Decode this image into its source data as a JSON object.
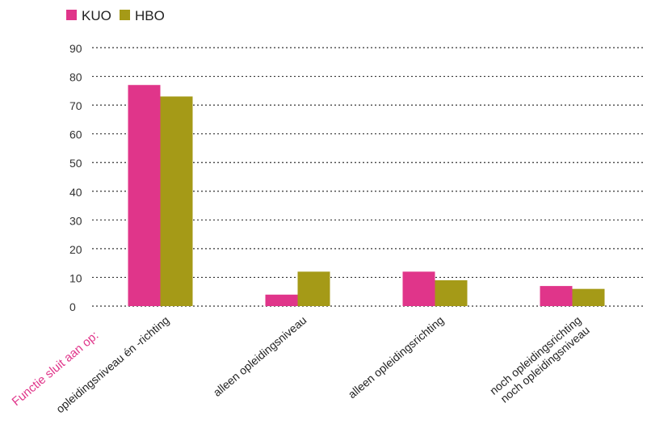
{
  "chart_data": {
    "type": "bar",
    "categories": [
      [
        "opleidingsniveau én -richting"
      ],
      [
        "alleen opleidingsniveau"
      ],
      [
        "alleen opleidingsrichting"
      ],
      [
        "noch opleidingsrichting",
        "noch opleidingsniveau"
      ]
    ],
    "series": [
      {
        "name": "KUO",
        "color": "#e0358a",
        "values": [
          77,
          4,
          12,
          7
        ]
      },
      {
        "name": "HBO",
        "color": "#a59a17",
        "values": [
          73,
          12,
          9,
          6
        ]
      }
    ],
    "ylim": [
      0,
      90
    ],
    "yticks": [
      0,
      10,
      20,
      30,
      40,
      50,
      60,
      70,
      80,
      90
    ],
    "grid": true,
    "legend_position": "top-left",
    "annotation": {
      "text": "Functie sluit aan op:",
      "color": "#e0358a"
    },
    "gridline_color": "#333333"
  }
}
